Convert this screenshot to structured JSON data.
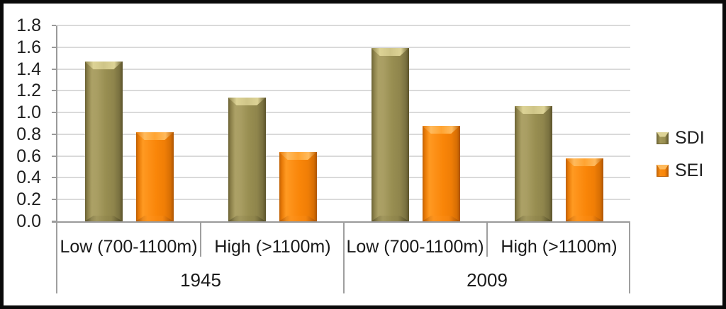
{
  "chart_data": {
    "type": "bar",
    "title": "",
    "xlabel": "",
    "ylabel": "",
    "ylim": [
      0.0,
      1.8
    ],
    "ytick_step": 0.2,
    "ytick_labels": [
      "0.0",
      "0.2",
      "0.4",
      "0.6",
      "0.8",
      "1.0",
      "1.2",
      "1.4",
      "1.6",
      "1.8"
    ],
    "grid": true,
    "legend_position": "right",
    "group_labels": [
      "1945",
      "2009"
    ],
    "categories": [
      {
        "group": "1945",
        "label": "Low (700-1100m)"
      },
      {
        "group": "1945",
        "label": "High (>1100m)"
      },
      {
        "group": "2009",
        "label": "Low (700-1100m)"
      },
      {
        "group": "2009",
        "label": "High (>1100m)"
      }
    ],
    "series": [
      {
        "name": "SDI",
        "color": "#9C9254",
        "values": [
          1.47,
          1.14,
          1.59,
          1.06
        ]
      },
      {
        "name": "SEI",
        "color": "#F98508",
        "values": [
          0.82,
          0.64,
          0.88,
          0.58
        ]
      }
    ]
  },
  "colors": {
    "sdi_bar": "#9C9254",
    "sei_bar": "#F98508",
    "gridline": "#DADADA",
    "axis_line": "#9A9A9A",
    "text": "#1F1F1F",
    "outer_border": "#0A0A0A",
    "background": "#FFFFFF"
  }
}
